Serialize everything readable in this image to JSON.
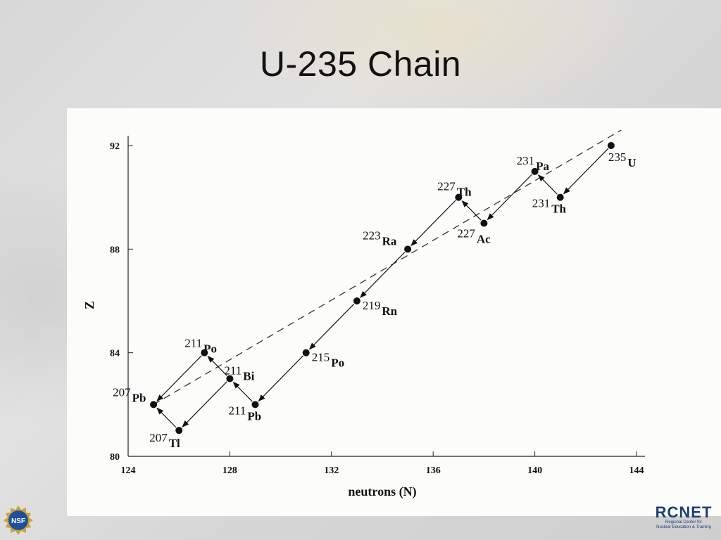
{
  "slide": {
    "title": "U-235 Chain"
  },
  "chart_data": {
    "type": "scatter",
    "title": "",
    "xlabel": "neutrons (N)",
    "ylabel": "Z",
    "xlim": [
      124,
      144
    ],
    "ylim": [
      80,
      92
    ],
    "x_ticks": [
      124,
      128,
      132,
      136,
      140,
      144
    ],
    "y_ticks": [
      80,
      84,
      88,
      92
    ],
    "grid": false,
    "nuclides": [
      {
        "id": "U235",
        "mass": "235",
        "symbol": "U",
        "N": 143,
        "Z": 92
      },
      {
        "id": "Th231",
        "mass": "231",
        "symbol": "Th",
        "N": 141,
        "Z": 90
      },
      {
        "id": "Pa231",
        "mass": "231",
        "symbol": "Pa",
        "N": 140,
        "Z": 91
      },
      {
        "id": "Ac227",
        "mass": "227",
        "symbol": "Ac",
        "N": 138,
        "Z": 89
      },
      {
        "id": "Th227",
        "mass": "227",
        "symbol": "Th",
        "N": 137,
        "Z": 90
      },
      {
        "id": "Ra223",
        "mass": "223",
        "symbol": "Ra",
        "N": 135,
        "Z": 88
      },
      {
        "id": "Rn219",
        "mass": "219",
        "symbol": "Rn",
        "N": 133,
        "Z": 86
      },
      {
        "id": "Po215",
        "mass": "215",
        "symbol": "Po",
        "N": 131,
        "Z": 84
      },
      {
        "id": "Pb211",
        "mass": "211",
        "symbol": "Pb",
        "N": 129,
        "Z": 82
      },
      {
        "id": "Bi211",
        "mass": "211",
        "symbol": "Bi",
        "N": 128,
        "Z": 83
      },
      {
        "id": "Po211",
        "mass": "211",
        "symbol": "Po",
        "N": 127,
        "Z": 84
      },
      {
        "id": "Tl207",
        "mass": "207",
        "symbol": "Tl",
        "N": 126,
        "Z": 81
      },
      {
        "id": "Pb207",
        "mass": "207",
        "symbol": "Pb",
        "N": 125,
        "Z": 82
      }
    ],
    "decays": [
      {
        "from": "U235",
        "to": "Th231"
      },
      {
        "from": "Th231",
        "to": "Pa231"
      },
      {
        "from": "Pa231",
        "to": "Ac227"
      },
      {
        "from": "Ac227",
        "to": "Th227"
      },
      {
        "from": "Th227",
        "to": "Ra223"
      },
      {
        "from": "Ra223",
        "to": "Rn219"
      },
      {
        "from": "Rn219",
        "to": "Po215"
      },
      {
        "from": "Po215",
        "to": "Pb211"
      },
      {
        "from": "Pb211",
        "to": "Bi211"
      },
      {
        "from": "Bi211",
        "to": "Po211"
      },
      {
        "from": "Bi211",
        "to": "Tl207"
      },
      {
        "from": "Po211",
        "to": "Pb207"
      },
      {
        "from": "Tl207",
        "to": "Pb207"
      }
    ],
    "trend_line": {
      "style": "dashed",
      "from": {
        "N": 125,
        "Z": 82
      },
      "to": {
        "N": 143.4,
        "Z": 92.6
      }
    }
  },
  "logos": {
    "left": {
      "icon": "nsf-logo-icon",
      "text": "NSF",
      "color": "#1d4f9c"
    },
    "right": {
      "icon": "rcnet-logo-icon",
      "name": "RCNET",
      "subtitle_1": "Regional Center for",
      "subtitle_2": "Nuclear Education & Training",
      "color": "#1d3f73"
    }
  }
}
